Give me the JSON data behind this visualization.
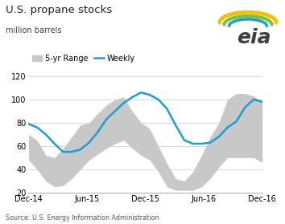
{
  "title": "U.S. propane stocks",
  "subtitle": "million barrels",
  "source": "Source: U.S. Energy Information Administration",
  "ylim": [
    20,
    120
  ],
  "yticks": [
    20,
    40,
    60,
    80,
    100,
    120
  ],
  "legend_labels": [
    "5-yr Range",
    "Weekly"
  ],
  "band_color": "#c8c8c8",
  "weekly_color": "#1a9fd4",
  "weekly_linewidth": 1.8,
  "background_color": "#ffffff",
  "grid_color": "#d0d0d0",
  "x_tick_labels": [
    "Dec-14",
    "Jun-15",
    "Dec-15",
    "Jun-16",
    "Dec-16"
  ],
  "x_tick_positions": [
    0,
    6,
    12,
    18,
    24
  ],
  "band_upper": [
    70,
    65,
    52,
    50,
    58,
    68,
    78,
    80,
    88,
    95,
    100,
    102,
    90,
    80,
    75,
    60,
    45,
    32,
    30,
    38,
    52,
    68,
    80,
    100,
    105,
    105,
    103,
    98
  ],
  "band_lower": [
    48,
    40,
    30,
    25,
    26,
    32,
    40,
    48,
    53,
    58,
    62,
    65,
    58,
    52,
    48,
    38,
    25,
    22,
    22,
    22,
    25,
    32,
    42,
    50,
    50,
    50,
    50,
    46
  ],
  "weekly": [
    79,
    76,
    70,
    62,
    55,
    55,
    57,
    63,
    72,
    83,
    90,
    97,
    102,
    106,
    104,
    100,
    92,
    78,
    65,
    62,
    62,
    63,
    68,
    76,
    81,
    93,
    100,
    98
  ],
  "n_points": 28
}
